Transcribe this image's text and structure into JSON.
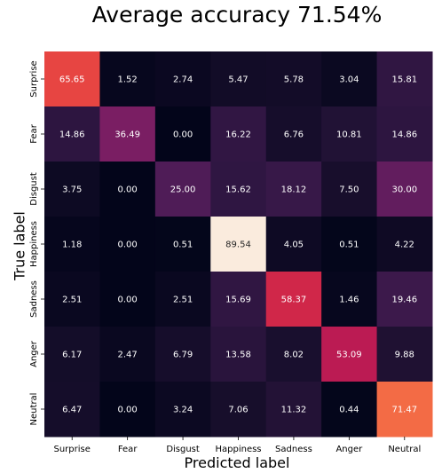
{
  "chart_data": {
    "type": "heatmap",
    "title": "Average accuracy 71.54%",
    "xlabel": "Predicted label",
    "ylabel": "True label",
    "x_categories": [
      "Surprise",
      "Fear",
      "Disgust",
      "Happiness",
      "Sadness",
      "Anger",
      "Neutral"
    ],
    "y_categories": [
      "Surprise",
      "Fear",
      "Disgust",
      "Happiness",
      "Sadness",
      "Anger",
      "Neutral"
    ],
    "values": [
      [
        65.65,
        1.52,
        2.74,
        5.47,
        5.78,
        3.04,
        15.81
      ],
      [
        14.86,
        36.49,
        0.0,
        16.22,
        6.76,
        10.81,
        14.86
      ],
      [
        3.75,
        0.0,
        25.0,
        15.62,
        18.12,
        7.5,
        30.0
      ],
      [
        1.18,
        0.0,
        0.51,
        89.54,
        4.05,
        0.51,
        4.22
      ],
      [
        2.51,
        0.0,
        2.51,
        15.69,
        58.37,
        1.46,
        19.46
      ],
      [
        6.17,
        2.47,
        6.79,
        13.58,
        8.02,
        53.09,
        9.88
      ],
      [
        6.47,
        0.0,
        3.24,
        7.06,
        11.32,
        0.44,
        71.47
      ]
    ],
    "colormap": "rocket",
    "legend": "none",
    "grid": false
  }
}
